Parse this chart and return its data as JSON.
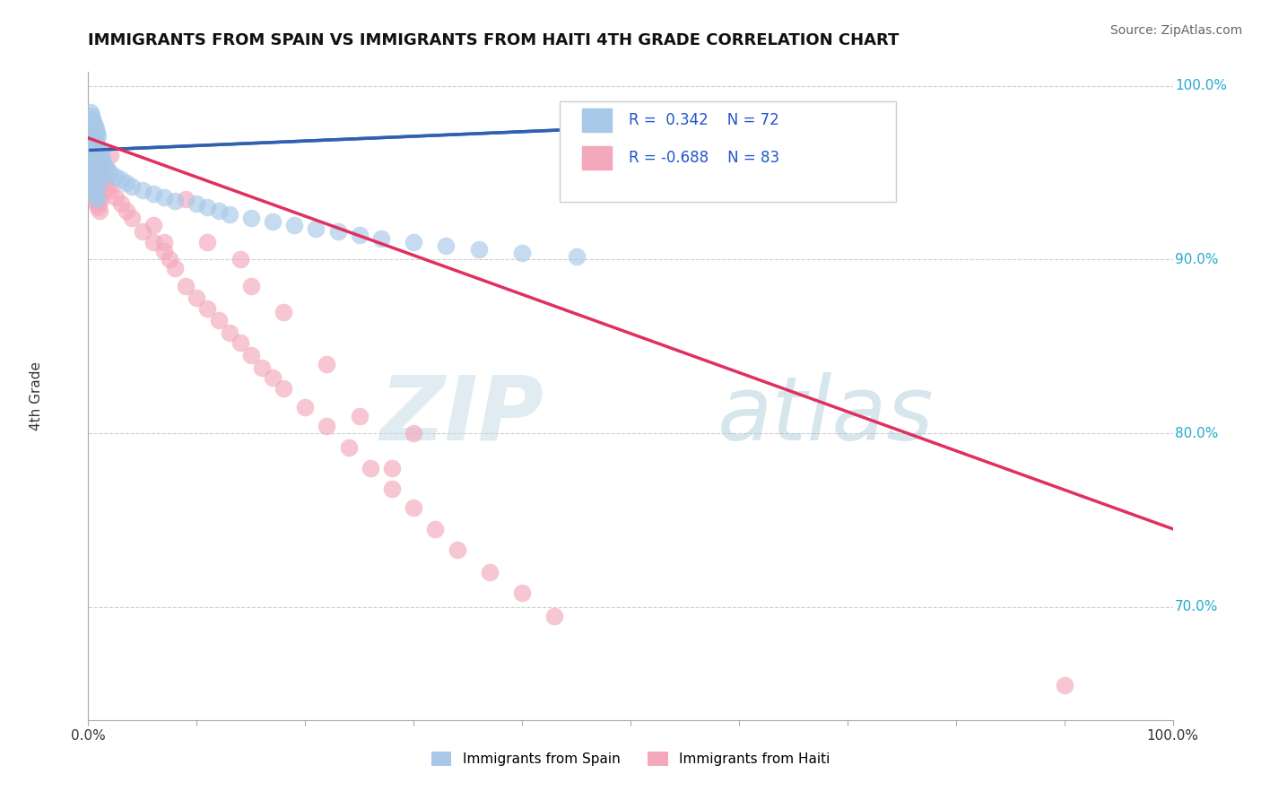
{
  "title": "IMMIGRANTS FROM SPAIN VS IMMIGRANTS FROM HAITI 4TH GRADE CORRELATION CHART",
  "source": "Source: ZipAtlas.com",
  "ylabel": "4th Grade",
  "xlim": [
    0.0,
    1.0
  ],
  "ylim": [
    0.635,
    1.008
  ],
  "yticks": [
    0.7,
    0.8,
    0.9,
    1.0
  ],
  "ytick_labels": [
    "70.0%",
    "80.0%",
    "90.0%",
    "100.0%"
  ],
  "r_spain": 0.342,
  "n_spain": 72,
  "r_haiti": -0.688,
  "n_haiti": 83,
  "color_spain": "#a8c8e8",
  "color_haiti": "#f4a8bc",
  "line_color_spain": "#3060b0",
  "line_color_haiti": "#e03060",
  "legend_label_spain": "Immigrants from Spain",
  "legend_label_haiti": "Immigrants from Haiti",
  "spain_x": [
    0.002,
    0.003,
    0.004,
    0.005,
    0.006,
    0.007,
    0.008,
    0.009,
    0.002,
    0.003,
    0.004,
    0.005,
    0.006,
    0.007,
    0.008,
    0.009,
    0.01,
    0.002,
    0.003,
    0.004,
    0.005,
    0.006,
    0.007,
    0.008,
    0.009,
    0.01,
    0.011,
    0.002,
    0.003,
    0.004,
    0.005,
    0.006,
    0.007,
    0.008,
    0.009,
    0.01,
    0.003,
    0.004,
    0.005,
    0.006,
    0.007,
    0.008,
    0.012,
    0.013,
    0.014,
    0.015,
    0.018,
    0.02,
    0.025,
    0.03,
    0.035,
    0.04,
    0.05,
    0.06,
    0.07,
    0.08,
    0.1,
    0.11,
    0.12,
    0.13,
    0.15,
    0.17,
    0.19,
    0.21,
    0.23,
    0.25,
    0.27,
    0.3,
    0.33,
    0.36,
    0.4,
    0.45
  ],
  "spain_y": [
    0.985,
    0.983,
    0.981,
    0.979,
    0.977,
    0.975,
    0.973,
    0.971,
    0.978,
    0.976,
    0.974,
    0.972,
    0.97,
    0.968,
    0.966,
    0.964,
    0.962,
    0.97,
    0.968,
    0.966,
    0.964,
    0.962,
    0.96,
    0.958,
    0.956,
    0.954,
    0.952,
    0.96,
    0.958,
    0.956,
    0.954,
    0.952,
    0.95,
    0.948,
    0.946,
    0.944,
    0.945,
    0.943,
    0.941,
    0.939,
    0.937,
    0.935,
    0.96,
    0.958,
    0.956,
    0.954,
    0.952,
    0.95,
    0.948,
    0.946,
    0.944,
    0.942,
    0.94,
    0.938,
    0.936,
    0.934,
    0.932,
    0.93,
    0.928,
    0.926,
    0.924,
    0.922,
    0.92,
    0.918,
    0.916,
    0.914,
    0.912,
    0.91,
    0.908,
    0.906,
    0.904,
    0.902
  ],
  "haiti_x": [
    0.002,
    0.003,
    0.004,
    0.005,
    0.006,
    0.007,
    0.008,
    0.009,
    0.01,
    0.002,
    0.003,
    0.004,
    0.005,
    0.006,
    0.007,
    0.008,
    0.009,
    0.01,
    0.003,
    0.004,
    0.005,
    0.006,
    0.007,
    0.008,
    0.009,
    0.01,
    0.011,
    0.004,
    0.005,
    0.006,
    0.007,
    0.008,
    0.009,
    0.01,
    0.012,
    0.013,
    0.014,
    0.015,
    0.018,
    0.02,
    0.025,
    0.03,
    0.035,
    0.04,
    0.05,
    0.06,
    0.07,
    0.075,
    0.08,
    0.09,
    0.1,
    0.11,
    0.12,
    0.13,
    0.14,
    0.15,
    0.16,
    0.17,
    0.18,
    0.2,
    0.22,
    0.24,
    0.26,
    0.28,
    0.3,
    0.32,
    0.34,
    0.37,
    0.4,
    0.43,
    0.15,
    0.22,
    0.3,
    0.14,
    0.18,
    0.09,
    0.06,
    0.07,
    0.25,
    0.9,
    0.02,
    0.11,
    0.28
  ],
  "haiti_y": [
    0.97,
    0.968,
    0.966,
    0.964,
    0.962,
    0.96,
    0.958,
    0.956,
    0.954,
    0.96,
    0.958,
    0.956,
    0.954,
    0.952,
    0.95,
    0.948,
    0.946,
    0.944,
    0.95,
    0.948,
    0.946,
    0.944,
    0.942,
    0.94,
    0.938,
    0.936,
    0.934,
    0.94,
    0.938,
    0.936,
    0.934,
    0.932,
    0.93,
    0.928,
    0.95,
    0.948,
    0.946,
    0.944,
    0.942,
    0.94,
    0.936,
    0.932,
    0.928,
    0.924,
    0.916,
    0.91,
    0.905,
    0.9,
    0.895,
    0.885,
    0.878,
    0.872,
    0.865,
    0.858,
    0.852,
    0.845,
    0.838,
    0.832,
    0.826,
    0.815,
    0.804,
    0.792,
    0.78,
    0.768,
    0.757,
    0.745,
    0.733,
    0.72,
    0.708,
    0.695,
    0.885,
    0.84,
    0.8,
    0.9,
    0.87,
    0.935,
    0.92,
    0.91,
    0.81,
    0.655,
    0.96,
    0.91,
    0.78
  ],
  "watermark_zip": "ZIP",
  "watermark_atlas": "atlas",
  "bg_color": "#ffffff",
  "grid_color": "#cccccc",
  "haiti_line_x0": 0.0,
  "haiti_line_y0": 0.97,
  "haiti_line_x1": 1.0,
  "haiti_line_y1": 0.745,
  "spain_line_x0": 0.002,
  "spain_line_y0": 0.963,
  "spain_line_x1": 0.45,
  "spain_line_y1": 0.975
}
